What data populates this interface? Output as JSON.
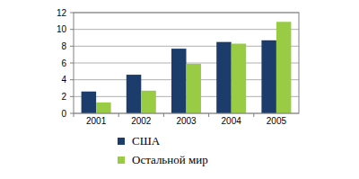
{
  "chart_data": {
    "type": "bar",
    "categories": [
      "2001",
      "2002",
      "2003",
      "2004",
      "2005"
    ],
    "series": [
      {
        "name": "США",
        "color": "#1c3c6c",
        "values": [
          2.6,
          4.6,
          7.7,
          8.5,
          8.7
        ]
      },
      {
        "name": "Остальной мир",
        "color": "#99cc44",
        "values": [
          1.3,
          2.7,
          5.9,
          8.3,
          10.9
        ]
      }
    ],
    "ylim": [
      0,
      12
    ],
    "yticks": [
      0,
      2,
      4,
      6,
      8,
      10,
      12
    ],
    "grid": true,
    "legend": "bottom"
  }
}
